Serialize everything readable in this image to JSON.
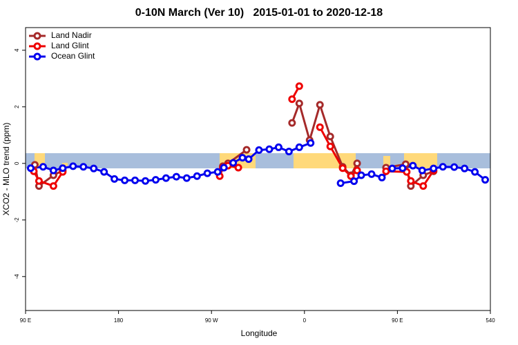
{
  "chart_data": {
    "type": "line",
    "title": "0-10N March (Ver 10)   2015-01-01 to 2020-12-18",
    "xlabel": "Longitude",
    "ylabel": "XCO2 - MLO trend (ppm)",
    "xlim": [
      90,
      540
    ],
    "xticks": [
      {
        "value": 90,
        "label": "90 E"
      },
      180,
      {
        "value": 270,
        "label": "90 W"
      },
      {
        "value": 360,
        "label": "0"
      },
      {
        "value": 450,
        "label": "90 E"
      },
      540
    ],
    "ylim": [
      -5.2,
      4.8
    ],
    "yticks": [
      -4,
      -2,
      0,
      2,
      4
    ],
    "legend": "top-left",
    "series": [
      {
        "name": "Land Nadir",
        "color": "#a52a2a",
        "x": [
          99,
          103,
          117,
          126,
          200,
          281,
          286,
          304,
          330,
          348,
          355,
          365,
          375,
          385,
          397,
          405,
          411,
          425,
          439,
          458,
          463,
          475,
          485
        ],
        "values": [
          -0.05,
          -0.8,
          -0.42,
          -0.25,
          null,
          -0.1,
          0.0,
          0.48,
          null,
          1.43,
          2.12,
          0.82,
          2.07,
          0.95,
          -0.12,
          -0.42,
          0.0,
          null,
          -0.15,
          -0.03,
          -0.8,
          -0.42,
          -0.28
        ]
      },
      {
        "name": "Land Glint",
        "color": "#ee0000",
        "x": [
          98,
          103,
          117,
          126,
          200,
          278,
          281,
          286,
          296,
          330,
          348,
          355,
          360,
          375,
          385,
          397,
          405,
          411,
          425,
          439,
          459,
          463,
          475,
          485
        ],
        "values": [
          -0.28,
          -0.62,
          -0.8,
          -0.3,
          null,
          -0.45,
          -0.15,
          -0.08,
          -0.15,
          null,
          2.27,
          2.73,
          null,
          1.28,
          0.6,
          -0.17,
          -0.45,
          -0.25,
          null,
          -0.28,
          -0.3,
          -0.62,
          -0.8,
          -0.25
        ]
      },
      {
        "name": "Ocean Glint",
        "color": "#0000ee",
        "x": [
          95,
          107,
          117,
          126,
          136,
          146,
          156,
          166,
          176,
          186,
          196,
          206,
          216,
          226,
          236,
          246,
          256,
          266,
          276,
          282,
          291,
          300,
          306,
          316,
          326,
          335,
          345,
          355,
          366,
          380,
          395,
          408,
          415,
          425,
          435,
          445,
          455,
          465,
          474,
          485,
          494,
          505,
          515,
          525,
          535
        ],
        "values": [
          -0.17,
          -0.12,
          -0.25,
          -0.17,
          -0.1,
          -0.12,
          -0.18,
          -0.3,
          -0.55,
          -0.6,
          -0.6,
          -0.62,
          -0.58,
          -0.52,
          -0.47,
          -0.52,
          -0.45,
          -0.35,
          -0.3,
          -0.15,
          0.02,
          0.2,
          0.15,
          0.47,
          0.5,
          0.57,
          0.42,
          0.57,
          0.72,
          null,
          -0.7,
          -0.63,
          -0.42,
          -0.38,
          -0.5,
          -0.18,
          -0.17,
          -0.08,
          -0.25,
          -0.18,
          -0.12,
          -0.13,
          -0.18,
          -0.3,
          -0.58
        ]
      }
    ]
  }
}
